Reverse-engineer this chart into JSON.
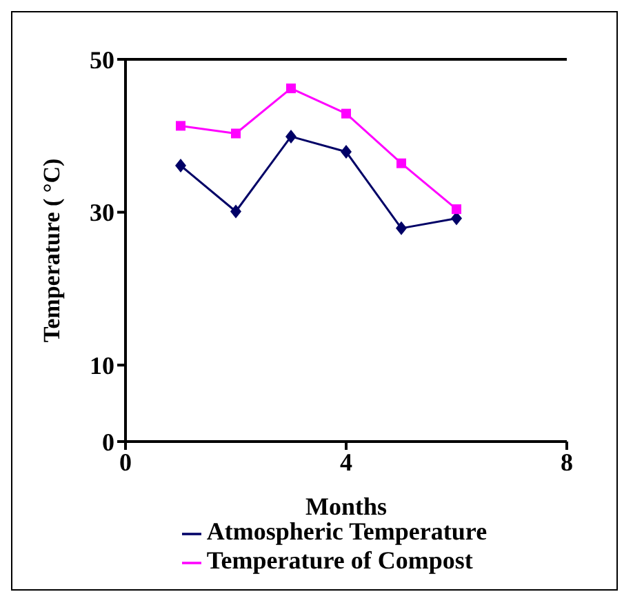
{
  "chart_data": {
    "type": "line",
    "xlabel": "Months",
    "ylabel": "Temperature ( °C)",
    "x": [
      1,
      2,
      3,
      4,
      5,
      6
    ],
    "series": [
      {
        "name": "Atmospheric Temperature",
        "color": "#000066",
        "values": [
          36.1,
          30.1,
          39.9,
          37.9,
          27.9,
          29.2
        ],
        "marker": "diamond"
      },
      {
        "name": "Temperature of Compost",
        "color": "#ff00ff",
        "values": [
          41.3,
          40.3,
          46.2,
          42.9,
          36.4,
          30.4
        ],
        "marker": "square"
      }
    ],
    "xlim": [
      0,
      8
    ],
    "xticks": [
      0,
      4,
      8
    ],
    "ylim": [
      0,
      50
    ],
    "yticks": [
      0,
      10,
      30,
      50
    ],
    "grid": false,
    "legend": "bottom"
  }
}
